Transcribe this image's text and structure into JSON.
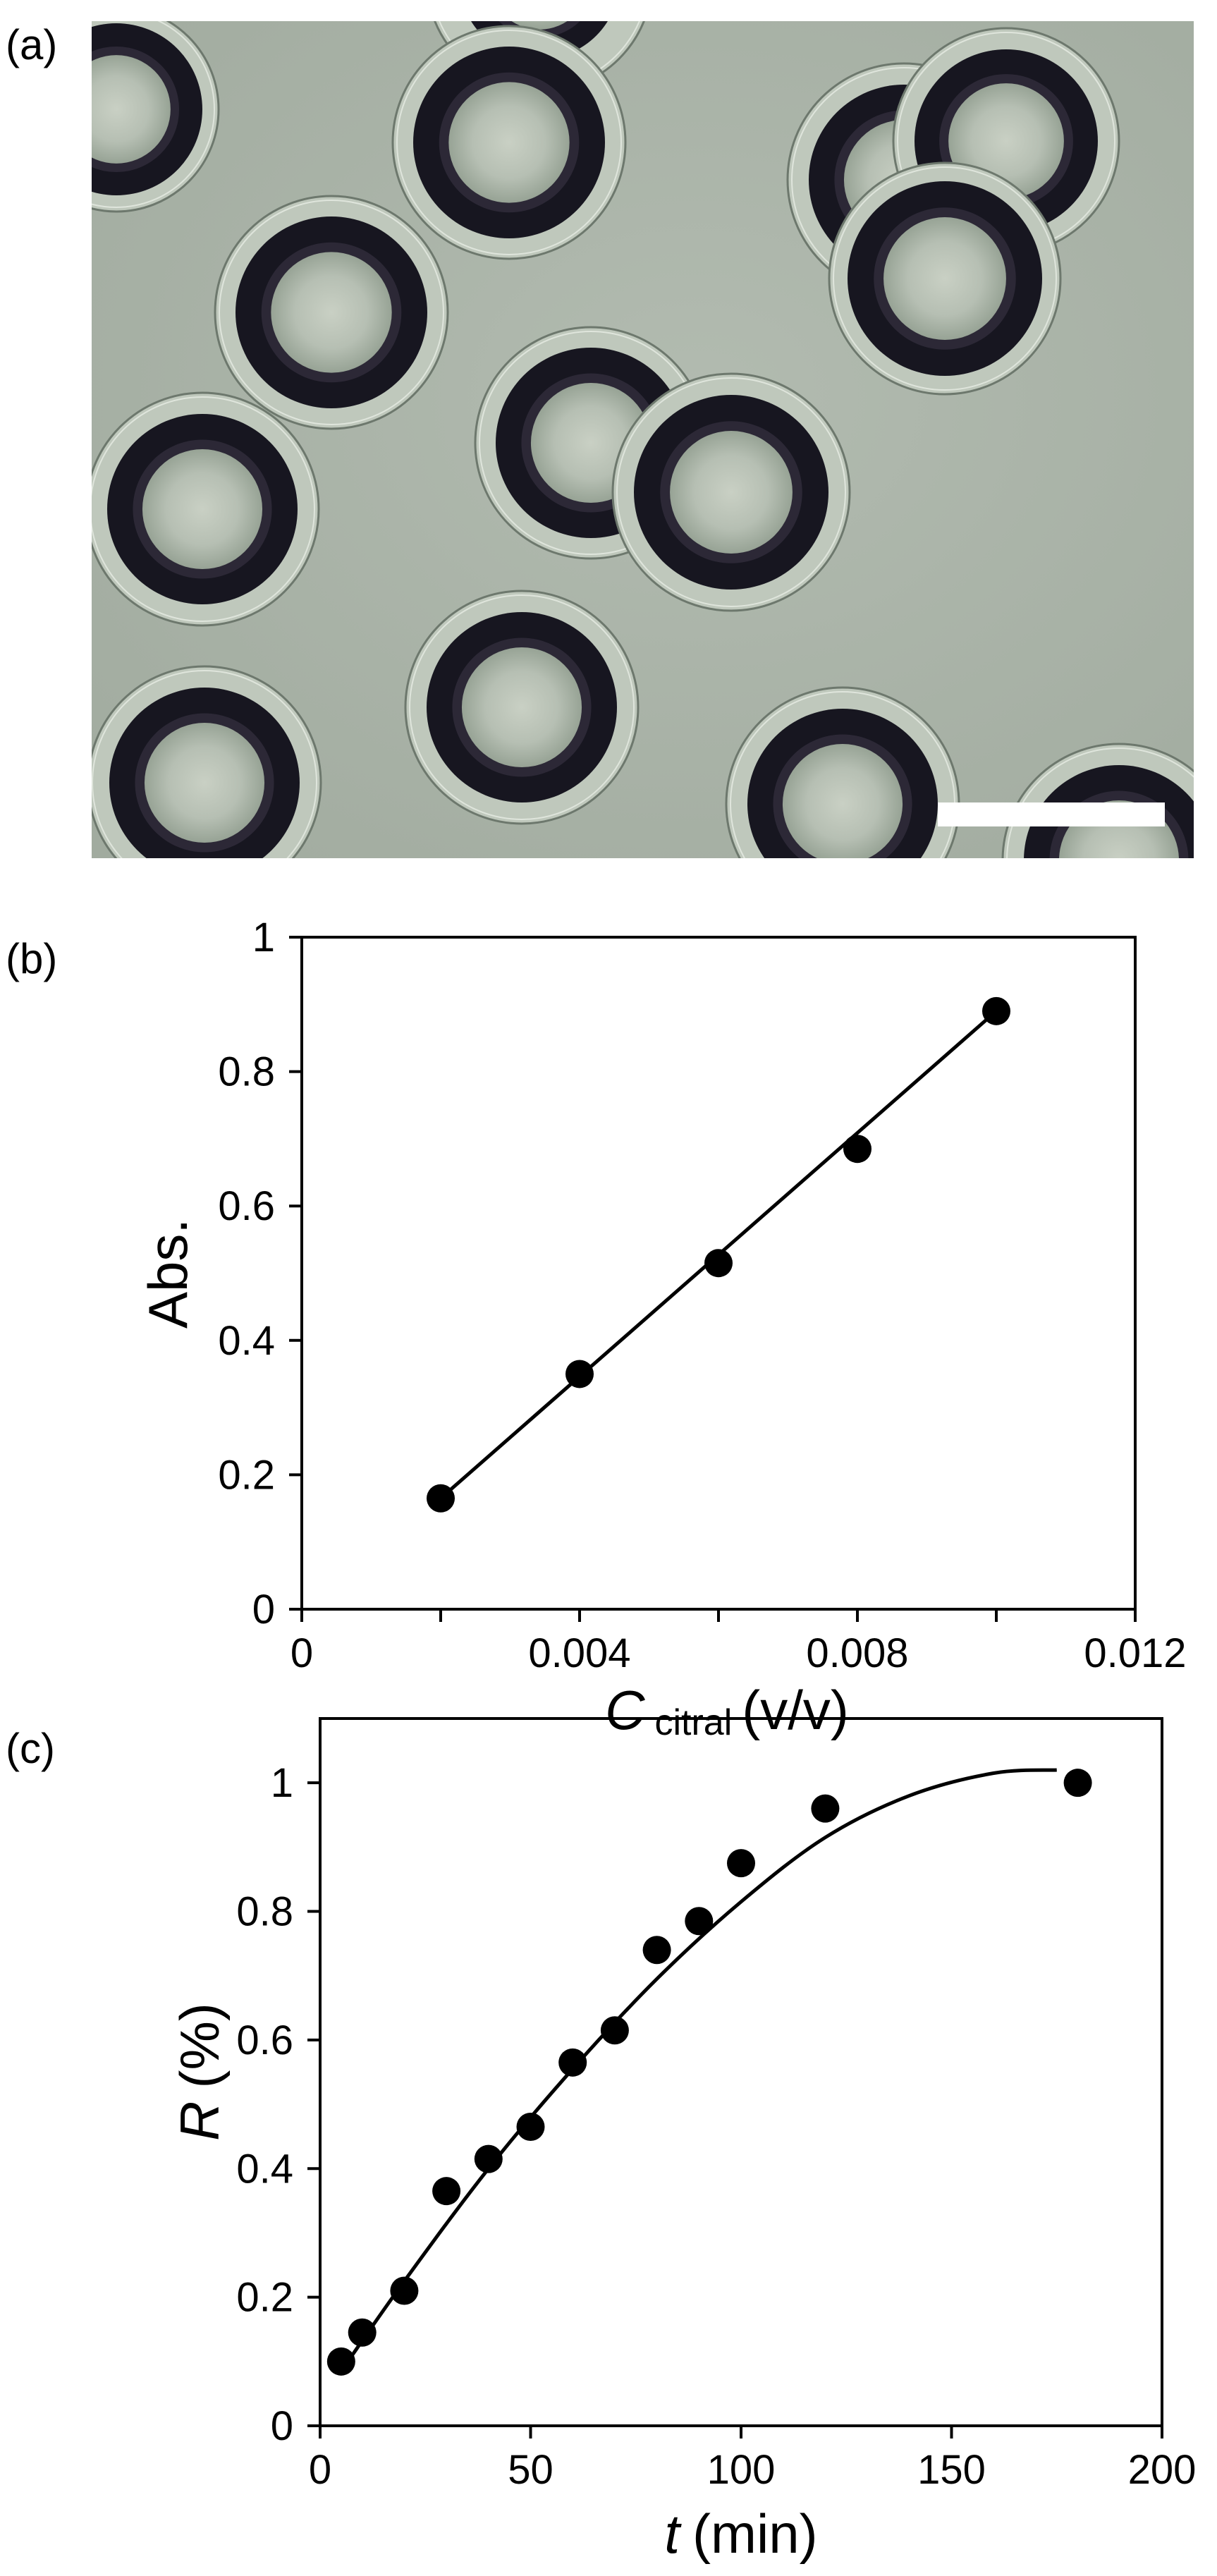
{
  "panels": [
    {
      "label": "(a)"
    },
    {
      "label": "(b)"
    },
    {
      "label": "(c)"
    }
  ],
  "chart_data": [
    {
      "type": "scatter",
      "panel": "(b)",
      "xlabel_main": "C",
      "xlabel_sub": "citral",
      "xlabel_unit": "(v/v)",
      "ylabel": "Abs.",
      "xlim": [
        0,
        0.012
      ],
      "ylim": [
        0,
        1
      ],
      "x_ticks": [
        0,
        0.004,
        0.008,
        0.012
      ],
      "x_tick_labels": [
        "0",
        "0.004",
        "0.008",
        "0.012"
      ],
      "y_ticks": [
        0,
        0.2,
        0.4,
        0.6,
        0.8,
        1
      ],
      "y_tick_labels": [
        "0",
        "0.2",
        "0.4",
        "0.6",
        "0.8",
        "1"
      ],
      "grid": false,
      "series": [
        {
          "x": [
            0.002,
            0.004,
            0.006,
            0.008,
            0.01
          ],
          "y": [
            0.165,
            0.35,
            0.515,
            0.685,
            0.89
          ]
        }
      ],
      "fit_line": {
        "x": [
          0.002,
          0.01
        ],
        "y": [
          0.165,
          0.89
        ]
      }
    },
    {
      "type": "scatter",
      "panel": "(c)",
      "xlabel_main": "t",
      "xlabel_unit": "(min)",
      "ylabel_main": "R",
      "ylabel_unit": "(%)",
      "xlim": [
        0,
        200
      ],
      "ylim": [
        0,
        1.1
      ],
      "x_ticks": [
        0,
        50,
        100,
        150,
        200
      ],
      "x_tick_labels": [
        "0",
        "50",
        "100",
        "150",
        "200"
      ],
      "y_ticks": [
        0,
        0.2,
        0.4,
        0.6,
        0.8,
        1
      ],
      "y_tick_labels": [
        "0",
        "0.2",
        "0.4",
        "0.6",
        "0.8",
        "1"
      ],
      "grid": false,
      "series": [
        {
          "x": [
            5,
            10,
            20,
            30,
            40,
            50,
            60,
            70,
            80,
            90,
            100,
            120,
            180
          ],
          "y": [
            0.1,
            0.145,
            0.21,
            0.365,
            0.415,
            0.465,
            0.565,
            0.615,
            0.74,
            0.785,
            0.875,
            0.96,
            1.0
          ]
        }
      ],
      "fit_curve": {
        "x": [
          5,
          20,
          40,
          60,
          80,
          100,
          120,
          140,
          160,
          175
        ],
        "y": [
          0.085,
          0.225,
          0.4,
          0.555,
          0.695,
          0.815,
          0.915,
          0.98,
          1.015,
          1.02
        ]
      }
    }
  ]
}
